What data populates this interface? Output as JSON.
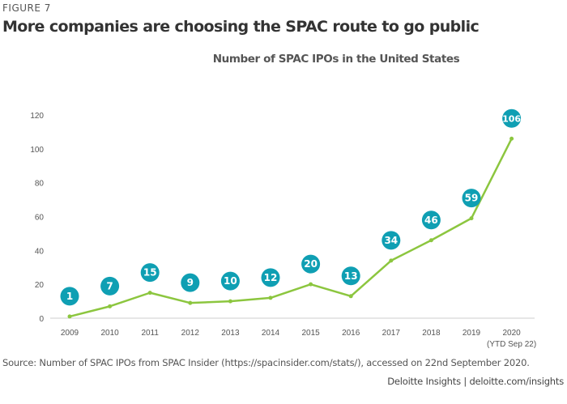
{
  "figure_label": "FIGURE 7",
  "headline": "More companies are choosing the SPAC route to go public",
  "source": "Source: Number of SPAC IPOs from SPAC Insider (https://spacinsider.com/stats/), accessed on 22nd September 2020.",
  "credit": "Deloitte Insights | deloitte.com/insights",
  "chart_data": {
    "type": "line",
    "title": "Number of SPAC IPOs in the United States",
    "xlabel": "",
    "ylabel": "",
    "categories": [
      "2009",
      "2010",
      "2011",
      "2012",
      "2013",
      "2014",
      "2015",
      "2016",
      "2017",
      "2018",
      "2019",
      "2020"
    ],
    "category_notes": {
      "2020": "(YTD Sep 22)"
    },
    "values": [
      1,
      7,
      15,
      9,
      10,
      12,
      20,
      13,
      34,
      46,
      59,
      106
    ],
    "ylim": [
      0,
      120
    ],
    "yticks": [
      0,
      20,
      40,
      60,
      80,
      100,
      120
    ],
    "grid": false,
    "line_color": "#8cc63f",
    "label_color": "#0f9fb3"
  }
}
